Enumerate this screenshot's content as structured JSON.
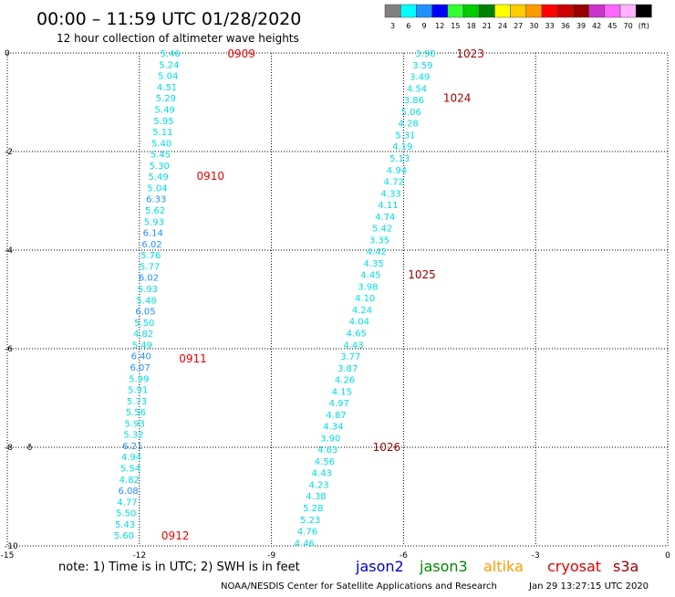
{
  "header": {
    "title": "00:00 – 11:59 UTC 01/28/2020",
    "subtitle": "12 hour collection of altimeter wave heights"
  },
  "legend": {
    "labels": [
      "3",
      "6",
      "9",
      "12",
      "15",
      "18",
      "21",
      "24",
      "27",
      "30",
      "33",
      "36",
      "39",
      "42",
      "45",
      "70",
      "(ft)"
    ],
    "colors": [
      "#808080",
      "#00ffff",
      "#1e90ff",
      "#0000ff",
      "#33ff33",
      "#00cc00",
      "#008000",
      "#ffff00",
      "#ffcc00",
      "#ff9900",
      "#ff0000",
      "#cc0000",
      "#990000",
      "#cc33cc",
      "#ff66ff",
      "#ffb3ff",
      "#000000"
    ]
  },
  "footer": {
    "note": "note: 1) Time is in UTC; 2) SWH is in feet",
    "credit": "NOAA/NESDIS Center for Satellite Applications and Research",
    "timestamp": "Jan 29 13:27:15 UTC 2020",
    "satellites": [
      {
        "name": "jason2",
        "color": "#0000cc"
      },
      {
        "name": "jason3",
        "color": "#008800"
      },
      {
        "name": "altika",
        "color": "#ff9900"
      },
      {
        "name": "cryosat",
        "color": "#dd0000"
      },
      {
        "name": "s3a",
        "color": "#990000"
      }
    ]
  },
  "chart_data": {
    "type": "scatter",
    "xlim": [
      -15,
      0
    ],
    "ylim": [
      -10,
      0
    ],
    "xticks": [
      -15,
      -12,
      -9,
      -6,
      -3,
      0
    ],
    "yticks": [
      0,
      -2,
      -4,
      -6,
      -8,
      -10
    ],
    "xtick_labels": [
      "-15",
      "-12",
      "-9",
      "-6",
      "-3",
      "0"
    ],
    "ytick_labels": [
      "0",
      "-2",
      "-4",
      "-6",
      "-8",
      "-10"
    ],
    "grid": true,
    "grid_style": "dotted",
    "markers": [
      {
        "label": "0909",
        "color": "#ee0000",
        "x": -10.0,
        "y": -0.02
      },
      {
        "label": "0910",
        "color": "#ee0000",
        "x": -10.7,
        "y": -2.5
      },
      {
        "label": "0911",
        "color": "#ee0000",
        "x": -11.1,
        "y": -6.2
      },
      {
        "label": "0912",
        "color": "#ee0000",
        "x": -11.5,
        "y": -9.8
      },
      {
        "label": "1023",
        "color": "#990000",
        "x": -4.8,
        "y": -0.02
      },
      {
        "label": "1024",
        "color": "#990000",
        "x": -5.1,
        "y": -0.92
      },
      {
        "label": "1025",
        "color": "#990000",
        "x": -5.9,
        "y": -4.5
      },
      {
        "label": "1026",
        "color": "#990000",
        "x": -6.7,
        "y": -8.0
      }
    ],
    "track_labels": [
      "0909",
      "0910",
      "0911",
      "0912",
      "1023",
      "1024",
      "1025",
      "1026"
    ],
    "series": [
      {
        "x_start": -11.3,
        "x_end": -12.35,
        "y_start": -0.02,
        "y_end": -9.8,
        "values": [
          5.46,
          5.24,
          5.04,
          4.51,
          5.29,
          5.49,
          5.95,
          5.11,
          5.4,
          5.45,
          5.3,
          5.49,
          5.04,
          6.33,
          5.62,
          5.93,
          6.14,
          6.02,
          5.76,
          5.77,
          6.02,
          5.93,
          5.48,
          6.05,
          5.5,
          4.82,
          5.49,
          6.4,
          6.07,
          5.99,
          5.91,
          5.73,
          5.56,
          5.93,
          5.32,
          6.21,
          4.94,
          5.54,
          4.82,
          6.08,
          4.77,
          5.5,
          5.43,
          5.6
        ]
      },
      {
        "x_start": -5.5,
        "x_end": -8.25,
        "y_start": -0.02,
        "y_end": -9.95,
        "values": [
          3.9,
          3.59,
          3.49,
          4.54,
          3.86,
          5.06,
          4.28,
          5.31,
          4.19,
          5.13,
          4.94,
          4.72,
          4.33,
          4.11,
          4.74,
          5.42,
          3.35,
          4.42,
          4.35,
          4.45,
          3.98,
          4.1,
          4.24,
          4.04,
          4.65,
          4.43,
          3.77,
          3.87,
          4.26,
          4.15,
          4.97,
          4.87,
          4.34,
          3.9,
          4.63,
          4.56,
          4.43,
          4.23,
          4.38,
          5.28,
          5.23,
          4.76,
          4.46
        ]
      }
    ],
    "glyph": {
      "text": "ð",
      "x": -14.55,
      "y": -8.0
    }
  }
}
